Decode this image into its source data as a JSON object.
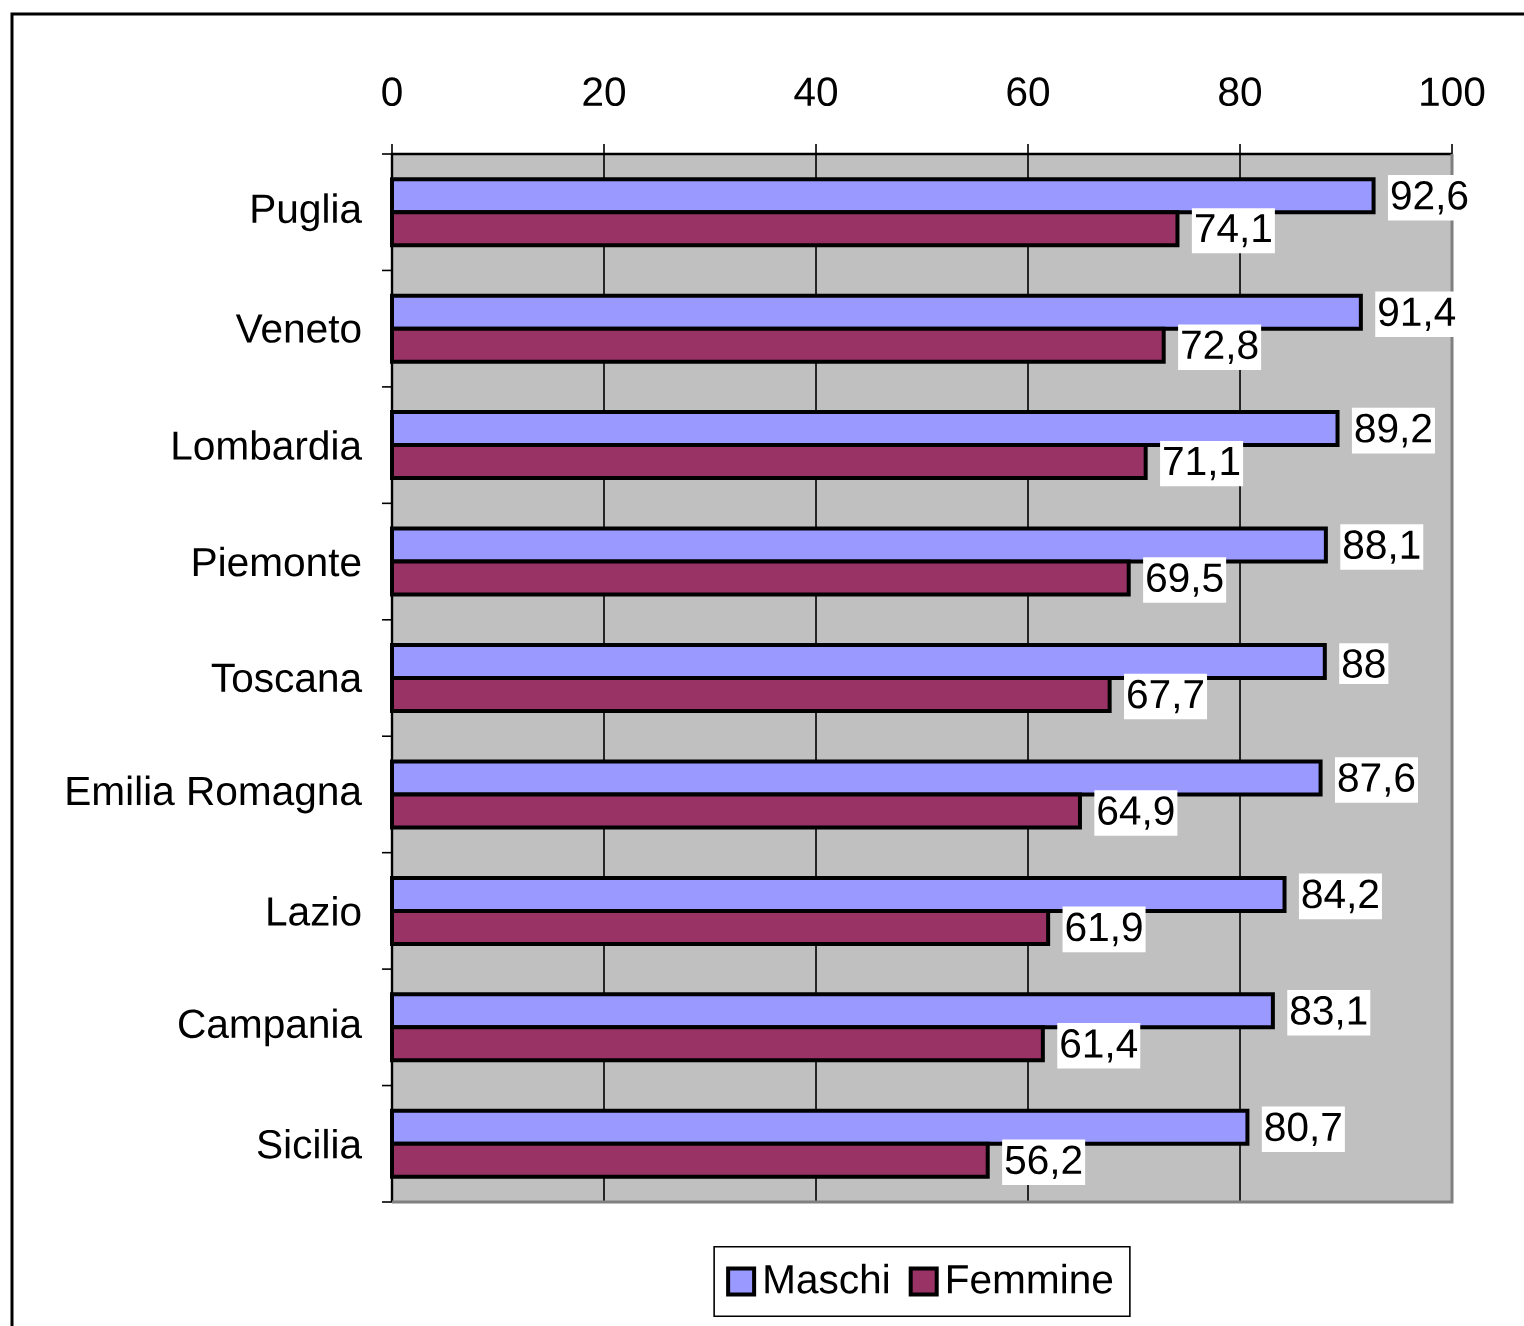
{
  "chart_data": {
    "type": "bar",
    "orientation": "horizontal",
    "categories": [
      "Puglia",
      "Veneto",
      "Lombardia",
      "Piemonte",
      "Toscana",
      "Emilia Romagna",
      "Lazio",
      "Campania",
      "Sicilia"
    ],
    "series": [
      {
        "name": "Maschi",
        "color": "#9999ff",
        "values": [
          92.6,
          91.4,
          89.2,
          88.1,
          88,
          87.6,
          84.2,
          83.1,
          80.7
        ],
        "value_labels": [
          "92,6",
          "91,4",
          "89,2",
          "88,1",
          "88",
          "87,6",
          "84,2",
          "83,1",
          "80,7"
        ]
      },
      {
        "name": "Femmine",
        "color": "#993366",
        "values": [
          74.1,
          72.8,
          71.1,
          69.5,
          67.7,
          64.9,
          61.9,
          61.4,
          56.2
        ],
        "value_labels": [
          "74,1",
          "72,8",
          "71,1",
          "69,5",
          "67,7",
          "64,9",
          "61,9",
          "61,4",
          "56,2"
        ]
      }
    ],
    "xlim": [
      0,
      100
    ],
    "xticks": [
      0,
      20,
      40,
      60,
      80,
      100
    ],
    "grid": "x",
    "legend": "bottom"
  }
}
